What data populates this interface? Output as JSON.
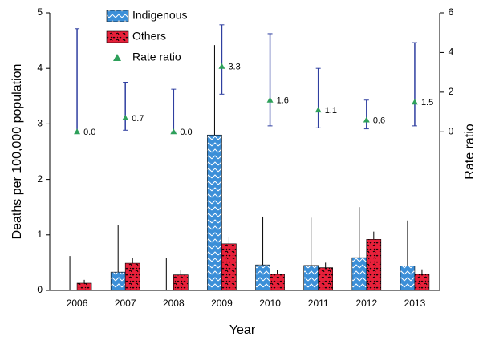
{
  "chart_data": {
    "type": "bar",
    "x_label": "Year",
    "y_label": "Deaths per 100,000 population",
    "y2_label": "Rate ratio",
    "categories": [
      "2006",
      "2007",
      "2008",
      "2009",
      "2010",
      "2011",
      "2012",
      "2013"
    ],
    "ylim": [
      0,
      5
    ],
    "yticks": [
      0,
      1,
      2,
      3,
      4,
      5
    ],
    "y2lim": [
      -8,
      6
    ],
    "y2ticks": [
      0,
      2,
      4,
      6
    ],
    "series": [
      {
        "name": "Indigenous",
        "type": "bar",
        "color": "#3b8fd8",
        "values": [
          0,
          0.33,
          0,
          2.8,
          0.46,
          0.45,
          0.59,
          0.44
        ],
        "error": [
          0.62,
          0.84,
          0.59,
          1.62,
          0.87,
          0.86,
          0.91,
          0.82
        ]
      },
      {
        "name": "Others",
        "type": "bar",
        "color": "#e8203a",
        "values": [
          0.13,
          0.49,
          0.28,
          0.84,
          0.29,
          0.41,
          0.92,
          0.29
        ],
        "error": [
          0.06,
          0.1,
          0.08,
          0.13,
          0.08,
          0.09,
          0.14,
          0.09
        ]
      },
      {
        "name": "Rate ratio",
        "type": "scatter",
        "axis": "y2",
        "color": "#2ea05a",
        "error_color": "#2f3fa0",
        "values": [
          0,
          0.7,
          0,
          3.3,
          1.6,
          1.1,
          0.6,
          1.5
        ],
        "value_labels": [
          "0.0",
          "0.7",
          "0.0",
          "3.3",
          "1.6",
          "1.1",
          "0.6",
          "1.5"
        ],
        "ci_lower": [
          0,
          0.08,
          0,
          1.9,
          0.3,
          0.2,
          0.15,
          0.3
        ],
        "ci_upper": [
          5.2,
          2.5,
          2.15,
          5.4,
          4.95,
          3.2,
          1.6,
          4.5
        ]
      }
    ]
  }
}
